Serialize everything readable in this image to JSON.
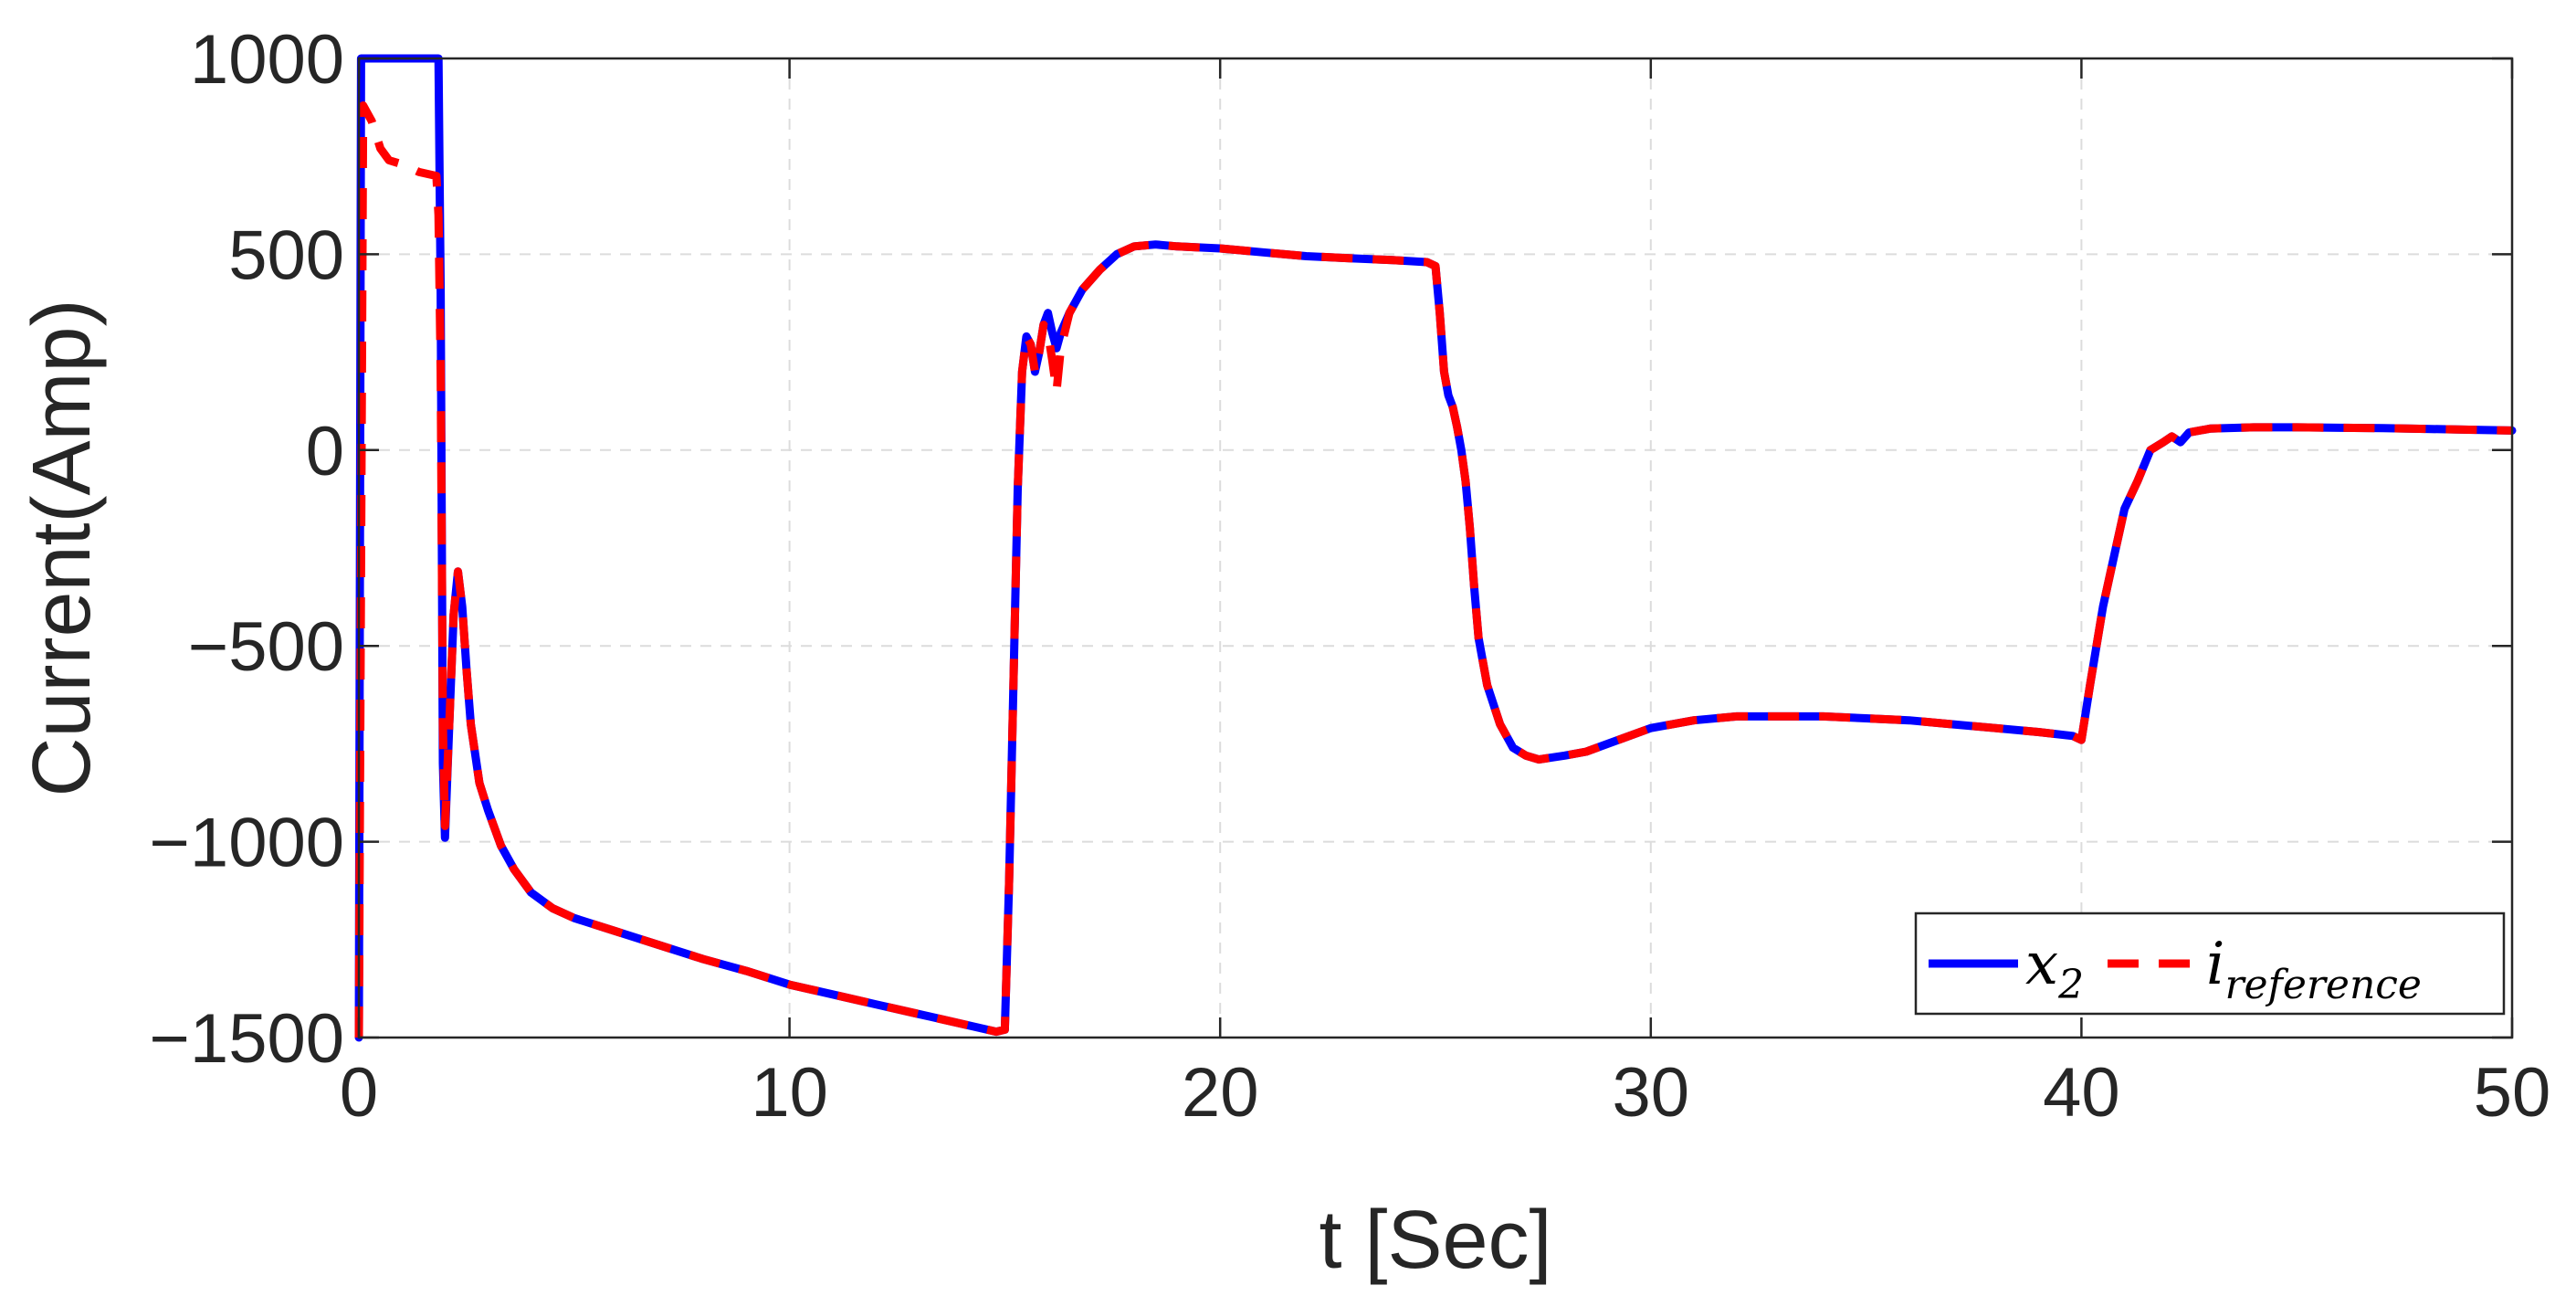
{
  "chart_data": {
    "type": "line",
    "title": "",
    "xlabel": "t [Sec]",
    "ylabel": "Current(Amp)",
    "xlim": [
      0,
      50
    ],
    "ylim": [
      -1500,
      1000
    ],
    "xticks": [
      0,
      10,
      20,
      30,
      40,
      50
    ],
    "yticks": [
      -1500,
      -1000,
      -500,
      0,
      500,
      1000
    ],
    "xtick_labels": [
      "0",
      "10",
      "20",
      "30",
      "40",
      "50"
    ],
    "ytick_labels": [
      "−1500",
      "−1000",
      "−500",
      "0",
      "500",
      "1000"
    ],
    "grid": true,
    "legend_position": "bottom-right",
    "series": [
      {
        "name": "x",
        "name_subscript": "2",
        "color": "#0000ff",
        "style": "solid",
        "x": [
          0,
          0.05,
          0.1,
          1.0,
          1.8,
          1.85,
          1.9,
          1.95,
          2.0,
          2.1,
          2.2,
          2.3,
          2.4,
          2.5,
          2.6,
          2.8,
          3.0,
          3.3,
          3.6,
          4.0,
          4.5,
          5.0,
          6,
          7,
          8,
          9,
          10,
          11,
          12,
          13,
          14,
          14.8,
          15.0,
          15.1,
          15.2,
          15.3,
          15.4,
          15.5,
          15.6,
          15.7,
          15.8,
          15.9,
          16.0,
          16.1,
          16.2,
          16.3,
          16.5,
          16.8,
          17.2,
          17.6,
          18,
          18.5,
          19,
          20,
          21,
          22,
          23,
          24,
          24.8,
          25.0,
          25.1,
          25.2,
          25.3,
          25.4,
          25.5,
          25.6,
          25.7,
          25.8,
          25.9,
          26.0,
          26.2,
          26.5,
          26.8,
          27.1,
          27.4,
          27.7,
          28.0,
          28.5,
          29,
          30,
          31,
          32,
          33,
          34,
          35,
          36,
          37,
          38,
          39,
          39.8,
          40.0,
          40.2,
          40.5,
          40.8,
          41.0,
          41.3,
          41.6,
          41.9,
          42.1,
          42.3,
          42.5,
          43,
          44,
          45,
          46,
          47,
          48,
          49,
          50
        ],
        "y": [
          -1500,
          1000,
          1000,
          1000,
          1000,
          1000,
          400,
          -800,
          -990,
          -700,
          -420,
          -310,
          -400,
          -560,
          -700,
          -850,
          -920,
          -1010,
          -1070,
          -1130,
          -1170,
          -1195,
          -1230,
          -1265,
          -1300,
          -1330,
          -1365,
          -1390,
          -1415,
          -1440,
          -1465,
          -1485,
          -1480,
          -1100,
          -600,
          -100,
          200,
          290,
          270,
          200,
          250,
          320,
          350,
          300,
          260,
          300,
          350,
          410,
          460,
          500,
          520,
          525,
          520,
          515,
          505,
          495,
          490,
          485,
          480,
          470,
          350,
          200,
          140,
          110,
          60,
          0,
          -80,
          -200,
          -350,
          -480,
          -600,
          -700,
          -760,
          -780,
          -790,
          -785,
          -780,
          -770,
          -750,
          -710,
          -690,
          -680,
          -680,
          -680,
          -685,
          -690,
          -700,
          -710,
          -720,
          -730,
          -740,
          -600,
          -400,
          -250,
          -150,
          -80,
          0,
          20,
          35,
          20,
          45,
          55,
          58,
          58,
          57,
          56,
          54,
          52,
          50
        ]
      },
      {
        "name": "i",
        "name_subscript": "reference",
        "color": "#ff0000",
        "style": "dashed",
        "x": [
          0,
          0.05,
          0.1,
          0.3,
          0.5,
          0.7,
          1.0,
          1.4,
          1.8,
          1.85,
          1.9,
          1.95,
          2.0,
          2.1,
          2.2,
          2.3,
          2.4,
          2.5,
          2.6,
          2.8,
          3.0,
          3.3,
          3.6,
          4.0,
          4.5,
          5.0,
          6,
          7,
          8,
          9,
          10,
          11,
          12,
          13,
          14,
          14.8,
          15.0,
          15.1,
          15.2,
          15.3,
          15.4,
          15.5,
          15.6,
          15.7,
          15.8,
          15.9,
          16.0,
          16.1,
          16.2,
          16.3,
          16.5,
          16.8,
          17.2,
          17.6,
          18,
          18.5,
          19,
          20,
          21,
          22,
          23,
          24,
          24.8,
          25.0,
          25.1,
          25.2,
          25.3,
          25.4,
          25.5,
          25.6,
          25.7,
          25.8,
          25.9,
          26.0,
          26.2,
          26.5,
          26.8,
          27.1,
          27.4,
          27.7,
          28.0,
          28.5,
          29,
          30,
          31,
          32,
          33,
          34,
          35,
          36,
          37,
          38,
          39,
          39.8,
          40.0,
          40.2,
          40.5,
          40.8,
          41.0,
          41.3,
          41.6,
          41.9,
          42.1,
          42.3,
          42.5,
          43,
          44,
          45,
          46,
          47,
          48,
          49,
          50
        ],
        "y": [
          -1500,
          -300,
          880,
          840,
          770,
          740,
          730,
          710,
          700,
          600,
          200,
          -700,
          -960,
          -700,
          -420,
          -310,
          -400,
          -560,
          -700,
          -850,
          -920,
          -1010,
          -1070,
          -1130,
          -1170,
          -1195,
          -1230,
          -1265,
          -1300,
          -1330,
          -1365,
          -1390,
          -1415,
          -1440,
          -1465,
          -1485,
          -1480,
          -1100,
          -600,
          -100,
          200,
          290,
          270,
          200,
          250,
          320,
          300,
          230,
          150,
          260,
          350,
          410,
          460,
          500,
          520,
          525,
          520,
          515,
          505,
          495,
          490,
          485,
          480,
          470,
          350,
          200,
          140,
          110,
          60,
          0,
          -80,
          -200,
          -350,
          -480,
          -600,
          -700,
          -760,
          -780,
          -790,
          -785,
          -780,
          -770,
          -750,
          -710,
          -690,
          -680,
          -680,
          -680,
          -685,
          -690,
          -700,
          -710,
          -720,
          -730,
          -740,
          -600,
          -400,
          -250,
          -150,
          -80,
          0,
          20,
          35,
          20,
          45,
          55,
          58,
          58,
          57,
          56,
          54,
          52,
          50
        ]
      }
    ]
  }
}
